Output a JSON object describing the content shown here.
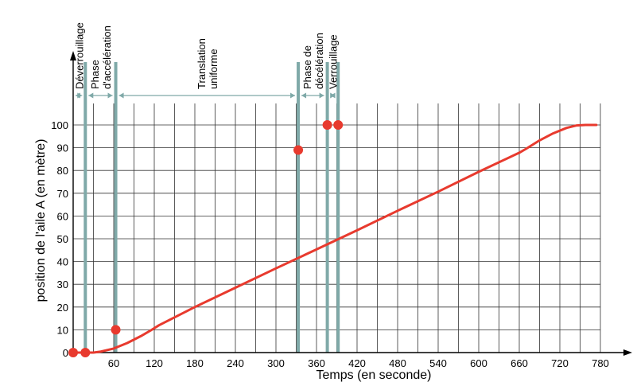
{
  "chart_data": {
    "type": "line",
    "title": "",
    "xlabel": "Temps (en seconde)",
    "ylabel": "position de l'aile  A (en mètre)",
    "xlim": [
      0,
      800
    ],
    "ylim": [
      0,
      100
    ],
    "x_ticks": [
      60,
      120,
      180,
      240,
      300,
      360,
      420,
      480,
      540,
      600,
      660,
      720,
      780
    ],
    "x_tick_labels": [
      "60",
      "120",
      "180",
      "240",
      "300",
      "360",
      "420",
      "480",
      "540",
      "600",
      "660",
      "720",
      "780"
    ],
    "x_grid": [
      30,
      60,
      90,
      120,
      150,
      180,
      210,
      240,
      270,
      300,
      330,
      360,
      390,
      420,
      450,
      480,
      510,
      540,
      570,
      600,
      630,
      660,
      690,
      720,
      750,
      780
    ],
    "y_ticks": [
      0,
      10,
      20,
      30,
      40,
      50,
      60,
      70,
      80,
      90,
      100
    ],
    "y_tick_labels": [
      "0",
      "10",
      "20",
      "30",
      "40",
      "50",
      "60",
      "70",
      "80",
      "90",
      "100"
    ],
    "grid": true,
    "series": [
      {
        "name": "",
        "color": "#e83a2e",
        "x": [
          0,
          18,
          30,
          40,
          60,
          80,
          100,
          115,
          127,
          180,
          240,
          300,
          360,
          420,
          480,
          540,
          600,
          660,
          670,
          690,
          710,
          730,
          745,
          758,
          774
        ],
        "y": [
          0,
          0,
          0,
          0.4,
          1.8,
          4.2,
          7.2,
          9.8,
          12,
          20,
          28.5,
          37,
          45.3,
          53.7,
          62.3,
          70.7,
          79.4,
          87.8,
          89.5,
          93.2,
          96.3,
          98.7,
          99.8,
          100,
          100
        ]
      }
    ],
    "markers": [
      {
        "x": 0,
        "y": 0
      },
      {
        "x": 18,
        "y": 0
      },
      {
        "x": 63,
        "y": 10
      },
      {
        "x": 333,
        "y": 89
      },
      {
        "x": 376,
        "y": 100
      },
      {
        "x": 392,
        "y": 100
      }
    ],
    "phases": [
      {
        "label_lines": [
          "Déverrouillage"
        ],
        "start": 0,
        "end": 18
      },
      {
        "label_lines": [
          "Phase",
          "d'accélération"
        ],
        "start": 18,
        "end": 63
      },
      {
        "label_lines": [
          "Translation",
          "uniforme"
        ],
        "start": 63,
        "end": 333
      },
      {
        "label_lines": [
          "Phase de",
          "décélération"
        ],
        "start": 333,
        "end": 376
      },
      {
        "label_lines": [
          "Verrouillage"
        ],
        "start": 376,
        "end": 392
      }
    ],
    "phase_line_color": "#7fa9a8",
    "grid_color": "#333333",
    "legend": "none"
  }
}
